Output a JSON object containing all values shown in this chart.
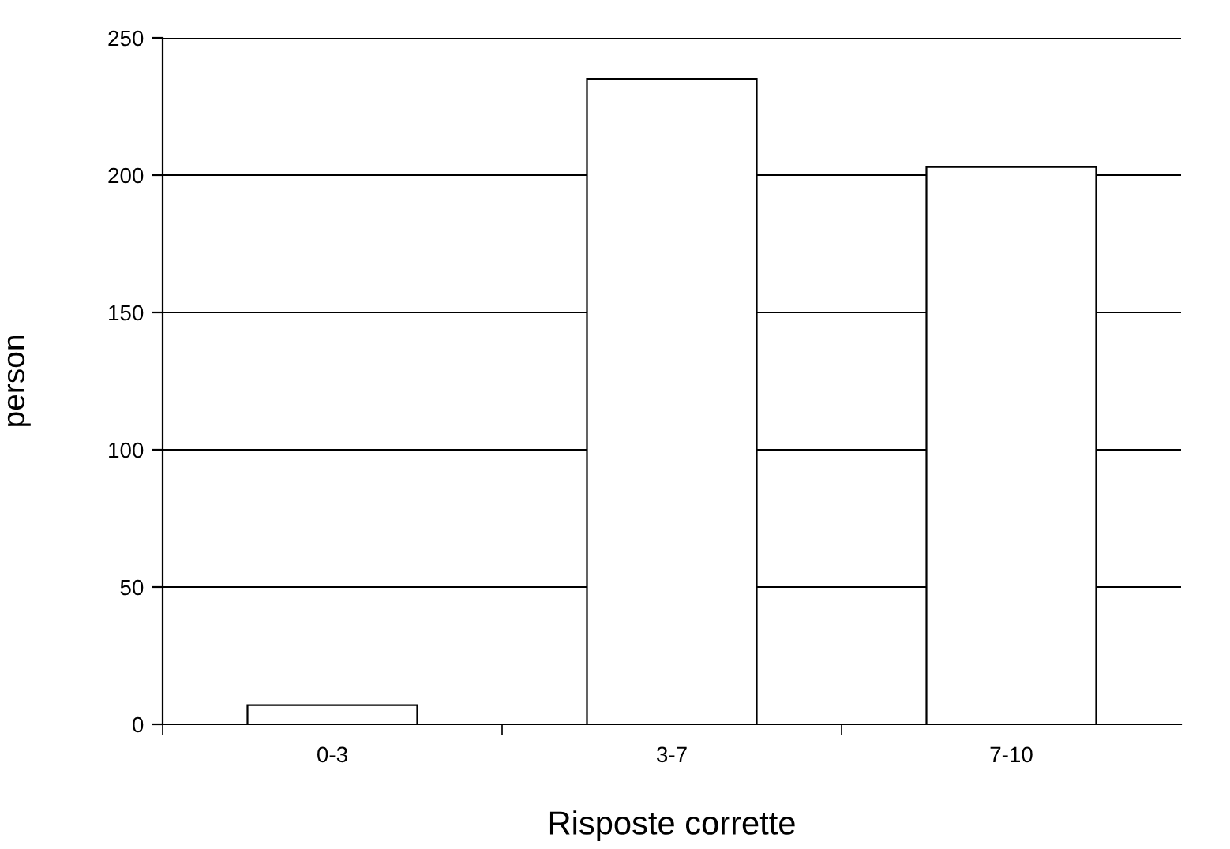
{
  "chart_data": {
    "type": "bar",
    "xlabel": "Risposte corrette",
    "ylabel": "person",
    "categories": [
      "0-3",
      "3-7",
      "7-10"
    ],
    "values": [
      7,
      235,
      203
    ],
    "color": "#ffffff",
    "ylim": [
      0,
      250
    ],
    "yticks": [
      0,
      50,
      100,
      150,
      200,
      250
    ],
    "grid": "y"
  }
}
